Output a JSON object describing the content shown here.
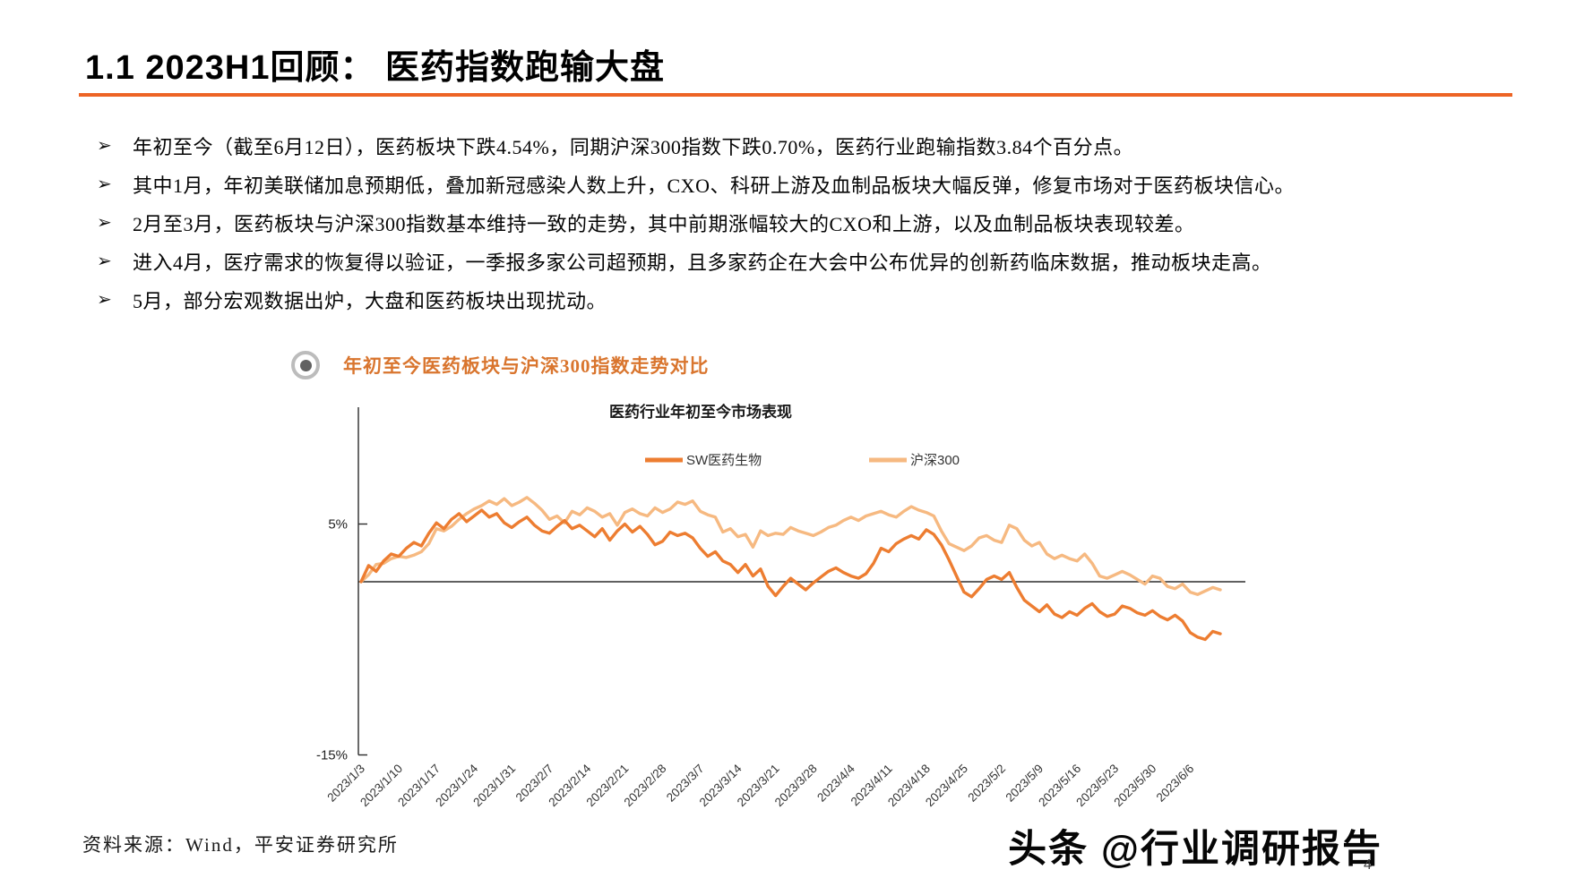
{
  "page": {
    "title": "1.1 2023H1回顾：  医药指数跑输大盘",
    "accent_color": "#ED6425",
    "source_note": "资料来源：Wind，平安证券研究所",
    "watermark": "头条 @行业调研报告",
    "page_number": "4"
  },
  "glyphs": {
    "bullet": "➢"
  },
  "bullets": [
    "年初至今（截至6月12日），医药板块下跌4.54%，同期沪深300指数下跌0.70%，医药行业跑输指数3.84个百分点。",
    "其中1月，年初美联储加息预期低，叠加新冠感染人数上升，CXO、科研上游及血制品板块大幅反弹，修复市场对于医药板块信心。",
    "2月至3月，医药板块与沪深300指数基本维持一致的走势，其中前期涨幅较大的CXO和上游，以及血制品板块表现较差。",
    "进入4月，医疗需求的恢复得以验证，一季报多家公司超预期，且多家药企在大会中公布优异的创新药临床数据，推动板块走高。",
    "5月，部分宏观数据出炉，大盘和医药板块出现扰动。"
  ],
  "section": {
    "label": "年初至今医药板块与沪深300指数走势对比"
  },
  "chart_data": {
    "type": "line",
    "title": "医药行业年初至今市场表现",
    "unit": "%",
    "ylim": [
      -15,
      15
    ],
    "grid": false,
    "legend_position": "top",
    "y_ticks": [
      {
        "value": 5,
        "label": "5%"
      },
      {
        "value": -15,
        "label": "-15%"
      }
    ],
    "x_tick_every": 5,
    "x_tick_labels": [
      "2023/1/3",
      "2023/1/10",
      "2023/1/17",
      "2023/1/24",
      "2023/1/31",
      "2023/2/7",
      "2023/2/14",
      "2023/2/21",
      "2023/2/28",
      "2023/3/7",
      "2023/3/14",
      "2023/3/21",
      "2023/3/28",
      "2023/4/4",
      "2023/4/11",
      "2023/4/18",
      "2023/4/25",
      "2023/5/2",
      "2023/5/9",
      "2023/5/16",
      "2023/5/23",
      "2023/5/30",
      "2023/6/6"
    ],
    "series": [
      {
        "name": "SW医药生物",
        "color": "#ED7D31",
        "values": [
          0.0,
          1.4,
          0.9,
          1.8,
          2.4,
          2.2,
          2.9,
          3.4,
          3.1,
          4.2,
          5.1,
          4.6,
          5.4,
          5.9,
          5.2,
          5.7,
          6.2,
          5.6,
          5.9,
          5.1,
          4.7,
          5.2,
          5.6,
          4.9,
          4.4,
          4.2,
          4.8,
          5.3,
          4.6,
          4.9,
          4.4,
          3.9,
          4.6,
          3.6,
          4.4,
          5.0,
          4.3,
          4.8,
          4.1,
          3.2,
          3.5,
          4.3,
          4.0,
          4.2,
          3.8,
          2.9,
          2.2,
          2.6,
          1.8,
          1.5,
          0.8,
          1.5,
          0.5,
          1.1,
          -0.4,
          -1.2,
          -0.4,
          0.3,
          -0.2,
          -0.7,
          -0.1,
          0.4,
          0.9,
          1.2,
          0.8,
          0.5,
          0.3,
          0.7,
          1.6,
          2.9,
          2.6,
          3.3,
          3.7,
          4.0,
          3.7,
          4.5,
          4.1,
          3.2,
          1.9,
          0.5,
          -0.9,
          -1.3,
          -0.6,
          0.2,
          0.5,
          0.2,
          0.8,
          -0.5,
          -1.6,
          -2.1,
          -2.6,
          -2.0,
          -2.8,
          -3.1,
          -2.6,
          -2.9,
          -2.3,
          -1.9,
          -2.6,
          -3.0,
          -2.8,
          -2.1,
          -2.3,
          -2.7,
          -2.9,
          -2.5,
          -3.0,
          -3.3,
          -2.9,
          -3.4,
          -4.4,
          -4.8,
          -5.0,
          -4.3,
          -4.5
        ]
      },
      {
        "name": "沪深300",
        "color": "#F6B981",
        "values": [
          0.0,
          0.6,
          1.5,
          1.6,
          2.0,
          2.2,
          2.1,
          2.3,
          2.6,
          3.3,
          4.6,
          4.4,
          4.8,
          5.4,
          5.9,
          6.3,
          6.6,
          7.0,
          6.7,
          7.2,
          6.6,
          6.9,
          7.3,
          6.8,
          6.2,
          5.4,
          5.7,
          5.1,
          6.1,
          5.8,
          6.4,
          6.1,
          5.6,
          5.9,
          4.9,
          6.0,
          6.3,
          5.9,
          5.7,
          6.4,
          6.0,
          6.3,
          6.9,
          6.7,
          7.0,
          6.1,
          5.8,
          5.6,
          4.3,
          4.6,
          3.9,
          4.1,
          3.0,
          4.4,
          4.0,
          4.2,
          4.1,
          4.7,
          4.4,
          4.2,
          4.0,
          4.3,
          4.7,
          4.9,
          5.3,
          5.6,
          5.3,
          5.7,
          5.9,
          6.1,
          5.8,
          5.6,
          6.1,
          6.5,
          6.2,
          6.0,
          5.7,
          4.4,
          3.3,
          3.0,
          2.7,
          3.1,
          3.8,
          4.0,
          3.6,
          3.4,
          4.9,
          4.6,
          3.6,
          3.1,
          3.4,
          2.4,
          2.0,
          2.3,
          2.0,
          1.8,
          2.4,
          1.6,
          0.5,
          0.3,
          0.6,
          0.9,
          0.6,
          0.2,
          -0.2,
          0.5,
          0.3,
          -0.4,
          -0.6,
          -0.2,
          -0.9,
          -1.1,
          -0.8,
          -0.5,
          -0.7
        ]
      }
    ]
  }
}
